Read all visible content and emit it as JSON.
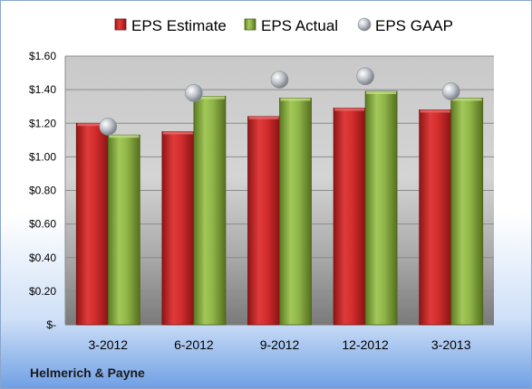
{
  "chart_data": {
    "type": "bar",
    "categories": [
      "3-2012",
      "6-2012",
      "9-2012",
      "12-2012",
      "3-2013"
    ],
    "series": [
      {
        "name": "EPS Estimate",
        "kind": "bar",
        "color": "#cc2a2a",
        "values": [
          1.2,
          1.15,
          1.24,
          1.29,
          1.28
        ]
      },
      {
        "name": "EPS Actual",
        "kind": "bar",
        "color": "#8bb043",
        "values": [
          1.13,
          1.36,
          1.35,
          1.39,
          1.35
        ]
      },
      {
        "name": "EPS GAAP",
        "kind": "marker",
        "color": "#b8bcc4",
        "values": [
          1.18,
          1.38,
          1.46,
          1.48,
          1.39
        ]
      }
    ],
    "yticks": [
      "$-",
      "$0.20",
      "$0.40",
      "$0.60",
      "$0.80",
      "$1.00",
      "$1.20",
      "$1.40",
      "$1.60"
    ],
    "ylim": [
      0,
      1.6
    ],
    "grid": true,
    "legend_position": "top",
    "footer": "Helmerich & Payne"
  }
}
